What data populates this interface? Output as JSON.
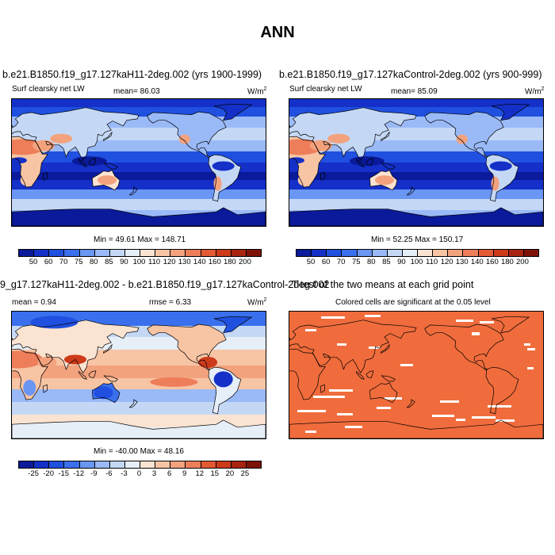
{
  "title": "ANN",
  "panels": {
    "p1": {
      "title": "b.e21.B1850.f19_g17.127kaH11-2deg.002 (yrs 1900-1999)",
      "var": "Surf clearsky net LW",
      "mean": "mean=  86.03",
      "units": "W/m",
      "units_sup": "2",
      "minmax": "Min =  49.61 Max = 148.71"
    },
    "p2": {
      "title": "b.e21.B1850.f19_g17.127kaControl-2deg.002 (yrs 900-999)",
      "var": "Surf clearsky net LW",
      "mean": "mean=  85.09",
      "units": "W/m",
      "units_sup": "2",
      "minmax": "Min =  52.25 Max = 150.17"
    },
    "p3": {
      "title": "9_g17.127kaH11-2deg.002 - b.e21.B1850.f19_g17.127kaControl-2deg.002",
      "mean": "mean =   0.94",
      "rmse": "rmse =   6.33",
      "units": "W/m",
      "units_sup": "2",
      "minmax": "Min = -40.00 Max =  48.16"
    },
    "p4": {
      "title": "T-test of the two means at each grid point",
      "subtitle": "Colored cells are significant at the 0.05 level"
    }
  },
  "colorbar_abs": {
    "labels": [
      "50",
      "60",
      "70",
      "75",
      "80",
      "85",
      "90",
      "100",
      "110",
      "120",
      "130",
      "140",
      "160",
      "180",
      "200"
    ],
    "colors": [
      "#0a1a9a",
      "#1430c8",
      "#2050e0",
      "#3a70ee",
      "#6a96f4",
      "#9ab9f7",
      "#c4d8f6",
      "#e6eef8",
      "#fbe3d2",
      "#f7c4a4",
      "#f3a27e",
      "#ee7e5a",
      "#e45a34",
      "#cc3a1a",
      "#a82410",
      "#7e1208"
    ]
  },
  "colorbar_diff": {
    "labels": [
      "-25",
      "-20",
      "-15",
      "-12",
      "-9",
      "-6",
      "-3",
      "0",
      "3",
      "6",
      "9",
      "12",
      "15",
      "20",
      "25"
    ],
    "colors": [
      "#0a1a9a",
      "#1430c8",
      "#2050e0",
      "#3a70ee",
      "#6a96f4",
      "#9ab9f7",
      "#c4d8f6",
      "#e6eef8",
      "#fbe3d2",
      "#f7c4a4",
      "#f3a27e",
      "#ee7e5a",
      "#e45a34",
      "#cc3a1a",
      "#a82410",
      "#7e1208"
    ]
  },
  "ttest_color": "#f06c3c"
}
